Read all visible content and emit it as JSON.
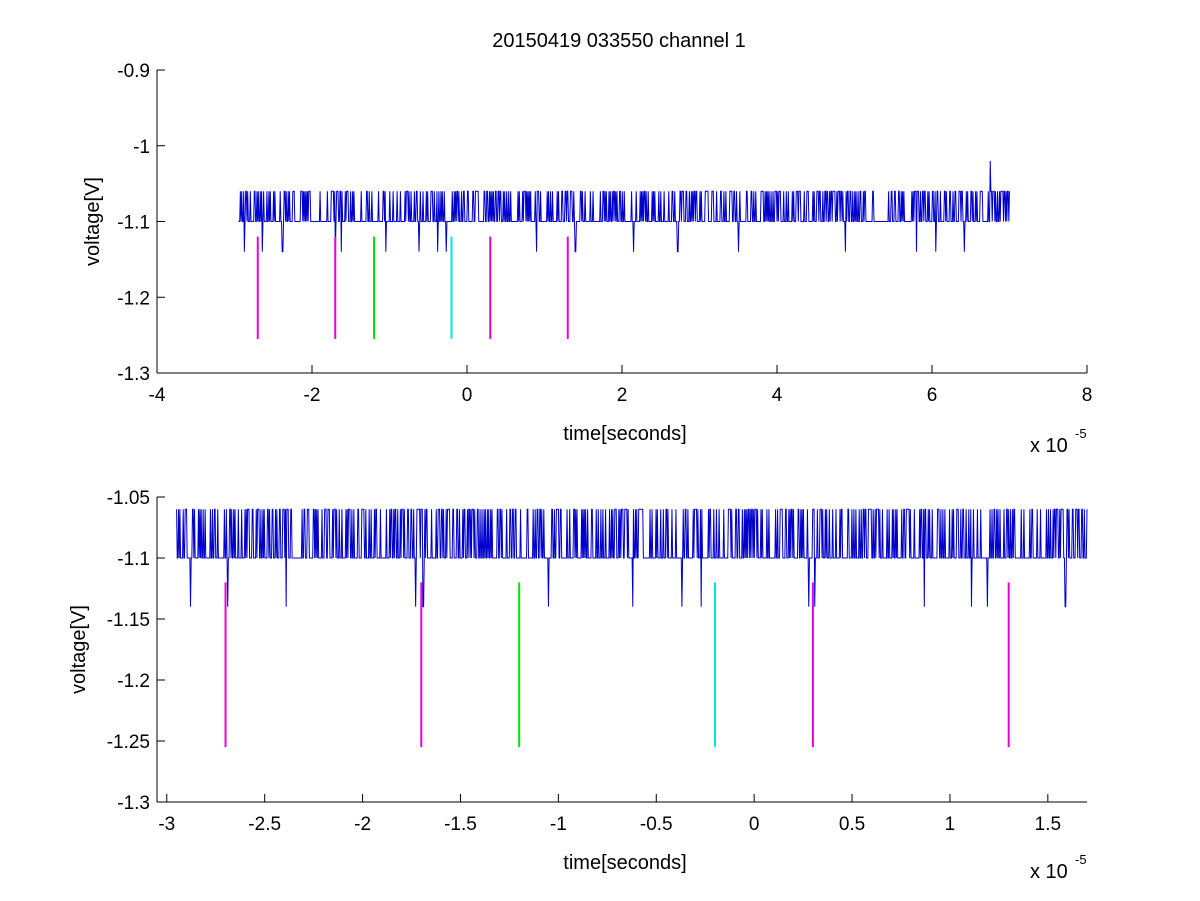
{
  "figure": {
    "title": "20150419 033550 channel 1"
  },
  "chart_data": [
    {
      "type": "line",
      "title": "20150419 033550 channel 1",
      "xlabel": "time[seconds]",
      "ylabel": "voltage[V]",
      "x_multiplier_label": "x 10",
      "x_multiplier_exponent": "-5",
      "xlim": [
        -4,
        8
      ],
      "ylim": [
        -1.3,
        -0.9
      ],
      "xticks": [
        -4,
        -2,
        0,
        2,
        4,
        6,
        8
      ],
      "xtick_labels": [
        "-4",
        "-2",
        "0",
        "2",
        "4",
        "6",
        "8"
      ],
      "yticks": [
        -1.3,
        -1.2,
        -1.1,
        -1,
        -0.9
      ],
      "ytick_labels": [
        "-1.3",
        "-1.2",
        "-1.1",
        "-1",
        "-0.9"
      ],
      "grid": false,
      "series": [
        {
          "color": "#0000cc",
          "x_range": [
            -2.95,
            7.0
          ],
          "base_level": -1.1,
          "high_level": -1.06,
          "low_level": -1.14,
          "dips": [
            -2.87,
            -2.64,
            -2.38,
            -1.7,
            -1.62,
            -1.05,
            -0.62,
            -0.38,
            -0.27,
            0.9,
            1.4,
            2.15,
            2.72,
            3.5,
            4.88,
            5.8,
            6.05,
            6.42
          ],
          "spikes": [
            {
              "x": 6.75,
              "y": -1.02
            }
          ]
        }
      ],
      "markers": [
        {
          "x": -2.7,
          "y_top": -1.12,
          "y_bottom": -1.255,
          "color": "#e600e6"
        },
        {
          "x": -1.7,
          "y_top": -1.12,
          "y_bottom": -1.255,
          "color": "#e600e6"
        },
        {
          "x": -1.2,
          "y_top": -1.12,
          "y_bottom": -1.255,
          "color": "#00e600"
        },
        {
          "x": -0.2,
          "y_top": -1.12,
          "y_bottom": -1.255,
          "color": "#00e6e6"
        },
        {
          "x": 0.3,
          "y_top": -1.12,
          "y_bottom": -1.255,
          "color": "#e600e6"
        },
        {
          "x": 1.3,
          "y_top": -1.12,
          "y_bottom": -1.255,
          "color": "#e600e6"
        }
      ]
    },
    {
      "type": "line",
      "title": "",
      "xlabel": "time[seconds]",
      "ylabel": "voltage[V]",
      "x_multiplier_label": "x 10",
      "x_multiplier_exponent": "-5",
      "xlim": [
        -3.05,
        1.7
      ],
      "ylim": [
        -1.3,
        -1.05
      ],
      "xticks": [
        -3,
        -2.5,
        -2,
        -1.5,
        -1,
        -0.5,
        0,
        0.5,
        1,
        1.5
      ],
      "xtick_labels": [
        "-3",
        "-2.5",
        "-2",
        "-1.5",
        "-1",
        "-0.5",
        "0",
        "0.5",
        "1",
        "1.5"
      ],
      "yticks": [
        -1.3,
        -1.25,
        -1.2,
        -1.15,
        -1.1,
        -1.05
      ],
      "ytick_labels": [
        "-1.3",
        "-1.25",
        "-1.2",
        "-1.15",
        "-1.1",
        "-1.05"
      ],
      "grid": false,
      "series": [
        {
          "color": "#0000cc",
          "x_range": [
            -2.95,
            1.7
          ],
          "base_level": -1.1,
          "high_level": -1.06,
          "low_level": -1.14,
          "dips": [
            -2.88,
            -2.69,
            -2.39,
            -1.73,
            -1.69,
            -1.05,
            -0.62,
            -0.37,
            -0.27,
            0.28,
            0.31,
            0.87,
            1.11,
            1.19,
            1.59
          ],
          "spikes": []
        }
      ],
      "markers": [
        {
          "x": -2.7,
          "y_top": -1.12,
          "y_bottom": -1.255,
          "color": "#e600e6"
        },
        {
          "x": -1.7,
          "y_top": -1.12,
          "y_bottom": -1.255,
          "color": "#e600e6"
        },
        {
          "x": -1.2,
          "y_top": -1.12,
          "y_bottom": -1.255,
          "color": "#00e600"
        },
        {
          "x": -0.2,
          "y_top": -1.12,
          "y_bottom": -1.255,
          "color": "#00e6e6"
        },
        {
          "x": 0.3,
          "y_top": -1.12,
          "y_bottom": -1.255,
          "color": "#e600e6"
        },
        {
          "x": 1.3,
          "y_top": -1.12,
          "y_bottom": -1.255,
          "color": "#e600e6"
        }
      ]
    }
  ]
}
